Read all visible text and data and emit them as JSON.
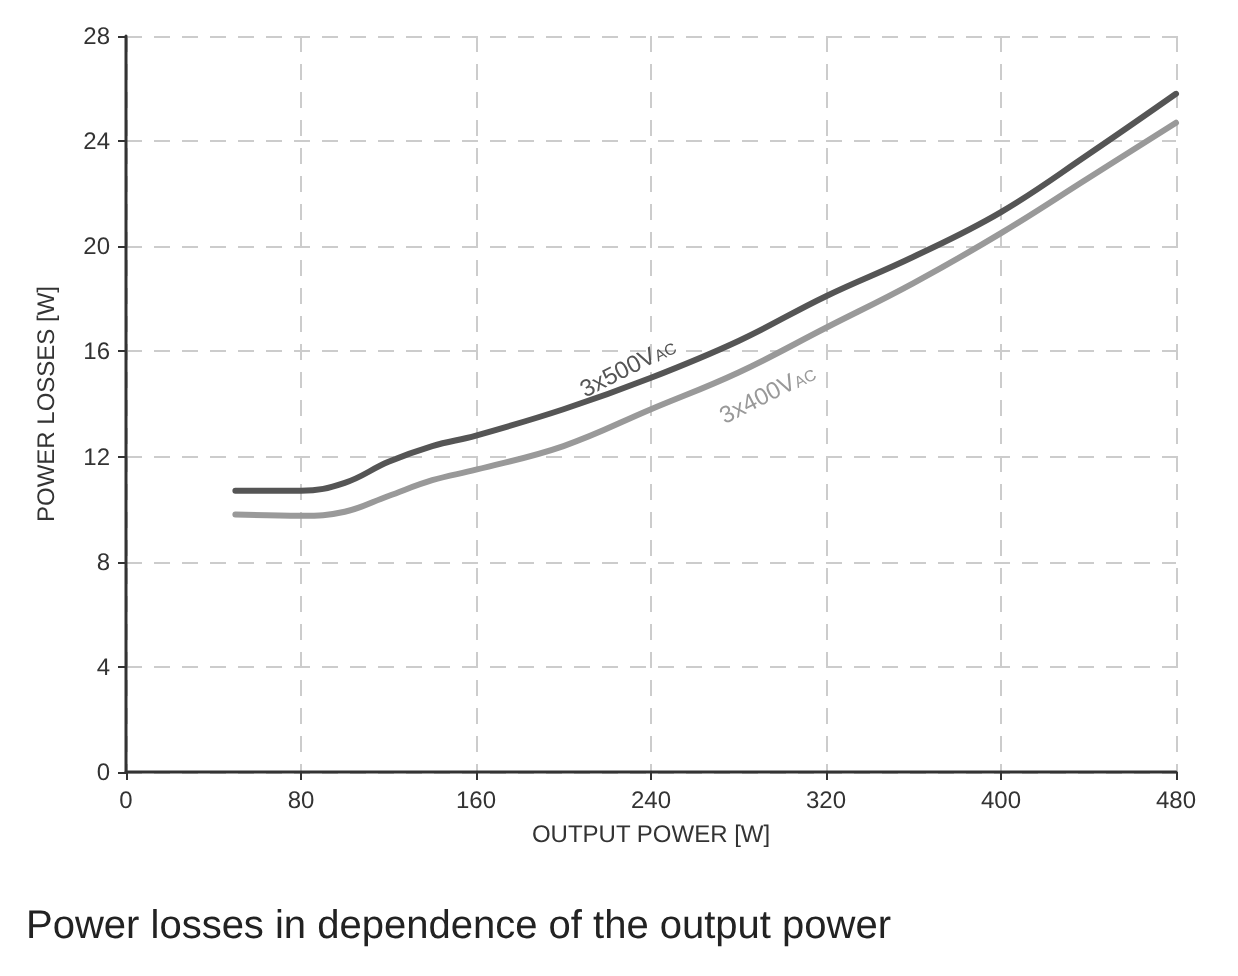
{
  "chart_data": {
    "type": "line",
    "title": "Power losses in dependence of the output power",
    "xlabel": "OUTPUT POWER [W]",
    "ylabel": "POWER LOSSES [W]",
    "x": [
      50,
      80,
      100,
      120,
      140,
      160,
      200,
      240,
      280,
      320,
      360,
      400,
      440,
      480
    ],
    "series": [
      {
        "name": "3x500V$_{AC}$",
        "color": "#555555",
        "values": [
          10.7,
          10.7,
          11.0,
          11.8,
          12.4,
          12.8,
          13.8,
          15.0,
          16.4,
          18.1,
          19.6,
          21.3,
          23.5,
          25.8
        ]
      },
      {
        "name": "3x400V$_{AC}$",
        "color": "#999999",
        "values": [
          9.8,
          9.75,
          9.9,
          10.5,
          11.1,
          11.5,
          12.4,
          13.8,
          15.2,
          16.9,
          18.6,
          20.5,
          22.6,
          24.7
        ]
      }
    ],
    "xlim": [
      0,
      480
    ],
    "xticks": [
      0,
      80,
      160,
      240,
      320,
      400,
      480
    ],
    "ylim": [
      0,
      28
    ],
    "yticks": [
      0,
      4,
      8,
      12,
      16,
      20,
      24,
      28
    ],
    "grid": true,
    "legend": false,
    "marker": "none",
    "line_style": "solid"
  }
}
